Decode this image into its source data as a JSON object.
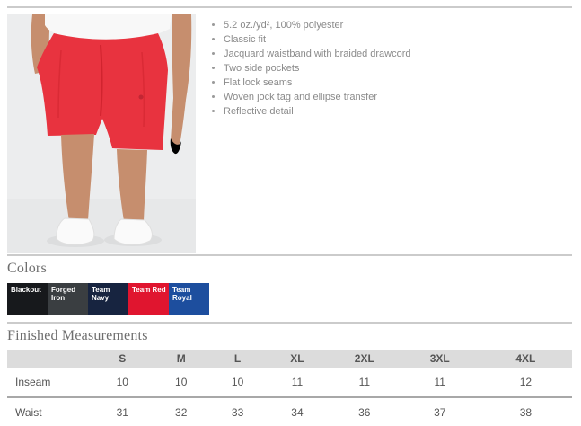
{
  "product": {
    "image_description": "Model wearing red athletic shorts with white t-shirt and white sneakers",
    "features": [
      "5.2 oz./yd², 100% polyester",
      "Classic fit",
      "Jacquard waistband with braided drawcord",
      "Two side pockets",
      "Flat lock seams",
      "Woven jock tag and ellipse transfer",
      "Reflective detail"
    ]
  },
  "colors_section": {
    "title": "Colors",
    "swatches": [
      {
        "name": "Blackout",
        "hex": "#17191c"
      },
      {
        "name": "Forged Iron",
        "hex": "#3a3e41"
      },
      {
        "name": "Team Navy",
        "hex": "#172440"
      },
      {
        "name": "Team Red",
        "hex": "#e0152f"
      },
      {
        "name": "Team Royal",
        "hex": "#1d4e9e"
      }
    ]
  },
  "measurements_section": {
    "title": "Finished Measurements",
    "columns": [
      "S",
      "M",
      "L",
      "XL",
      "2XL",
      "3XL",
      "4XL"
    ],
    "rows": [
      {
        "label": "Inseam",
        "values": [
          "10",
          "10",
          "10",
          "11",
          "11",
          "11",
          "12"
        ]
      },
      {
        "label": "Waist",
        "values": [
          "31",
          "32",
          "33",
          "34",
          "36",
          "37",
          "38"
        ]
      }
    ]
  },
  "theme": {
    "divider_color": "#cbcbcb",
    "table_header_bg": "#dcdcdc",
    "body_text_color": "#8a8a8a",
    "table_text_color": "#555555",
    "photo_bg": "#ecedee",
    "shorts_red": "#e8333f"
  }
}
